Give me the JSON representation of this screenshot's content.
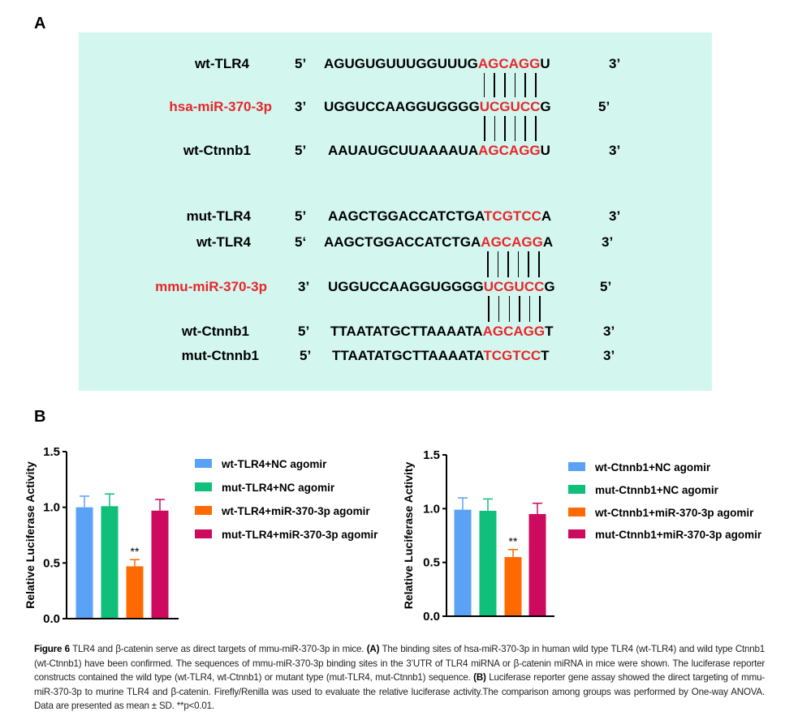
{
  "panel_a": {
    "label": "A",
    "rows": [
      {
        "name": "wt-TLR4",
        "p5": "5’",
        "pre": "AGUGUGUUUGGUUUG",
        "red": "AGCAGG",
        "post": "U",
        "p3": "3’",
        "mir": false
      },
      {
        "name": "hsa-miR-370-3p",
        "p5": "3’",
        "pre": "UGGUCCAAGGUGGGG",
        "red": "UCGUCC",
        "post": "G",
        "p3": "5’",
        "mir": true
      },
      {
        "name": "wt-Ctnnb1",
        "p5": "5’",
        "pre": "AAUAUGCUUAAAAUA",
        "red": "AGCAGG",
        "post": "U",
        "p3": "3’",
        "mir": false
      },
      {
        "name": "mut-TLR4",
        "p5": "5’",
        "pre": "AAGCTGGACCATCTGA",
        "red": "TCGTCC",
        "post": "A",
        "p3": "3’",
        "mir": false
      },
      {
        "name": "wt-TLR4",
        "p5": "5‘",
        "pre": "AAGCTGGACCATCTGA",
        "red": "AGCAGG",
        "post": "A",
        "p3": "3’",
        "mir": false
      },
      {
        "name": "mmu-miR-370-3p",
        "p5": "3’",
        "pre": "UGGUCCAAGGUGGGG",
        "red": "UCGUCC",
        "post": "G",
        "p3": "5’",
        "mir": true
      },
      {
        "name": "wt-Ctnnb1",
        "p5": "5’",
        "pre": "TTAATATGCTTAAAATA",
        "red": "AGCAGG",
        "post": "T",
        "p3": "3’",
        "mir": false
      },
      {
        "name": "mut-Ctnnb1",
        "p5": "5’",
        "pre": "TTAATATGCTTAAAATA",
        "red": "TCGTCC",
        "post": "T",
        "p3": "3’",
        "mir": false
      }
    ]
  },
  "panel_b": {
    "label": "B"
  },
  "colors": {
    "blue": "#5aa2f5",
    "green": "#0fbf7a",
    "orange": "#ff6a00",
    "magenta": "#cc0a5e",
    "highlight": "#e8262b",
    "panel_bg": "#d3f7ef"
  },
  "chart_data": [
    {
      "type": "bar",
      "ylabel": "Relative Luciferase Activity",
      "ylim": [
        0,
        1.5
      ],
      "yticks": [
        "0.0",
        "0.5",
        "1.0",
        "1.5"
      ],
      "legend_position": "right",
      "series": [
        {
          "name": "wt-TLR4+NC agomir",
          "value": 1.0,
          "error": 0.1,
          "color": "#5aa2f5",
          "annotation": ""
        },
        {
          "name": "mut-TLR4+NC agomir",
          "value": 1.01,
          "error": 0.11,
          "color": "#0fbf7a",
          "annotation": ""
        },
        {
          "name": "wt-TLR4+miR-370-3p agomir",
          "value": 0.47,
          "error": 0.06,
          "color": "#ff6a00",
          "annotation": "**"
        },
        {
          "name": "mut-TLR4+miR-370-3p agomir",
          "value": 0.97,
          "error": 0.1,
          "color": "#cc0a5e",
          "annotation": ""
        }
      ]
    },
    {
      "type": "bar",
      "ylabel": "Relative Luciferase Activity",
      "ylim": [
        0,
        1.5
      ],
      "yticks": [
        "0.0",
        "0.5",
        "1.0",
        "1.5"
      ],
      "legend_position": "right",
      "series": [
        {
          "name": "wt-Ctnnb1+NC agomir",
          "value": 0.99,
          "error": 0.11,
          "color": "#5aa2f5",
          "annotation": ""
        },
        {
          "name": "mut-Ctnnb1+NC agomir",
          "value": 0.98,
          "error": 0.11,
          "color": "#0fbf7a",
          "annotation": ""
        },
        {
          "name": "wt-Ctnnb1+miR-370-3p agomir",
          "value": 0.55,
          "error": 0.07,
          "color": "#ff6a00",
          "annotation": "**"
        },
        {
          "name": "mut-Ctnnb1+miR-370-3p agomir",
          "value": 0.95,
          "error": 0.1,
          "color": "#cc0a5e",
          "annotation": ""
        }
      ]
    }
  ],
  "caption": {
    "segments": [
      {
        "text": "Figure 6",
        "bold": true
      },
      {
        "text": " TLR4 and β-catenin serve as direct targets of mmu-miR-370-3p in mice. ",
        "bold": false
      },
      {
        "text": "(A)",
        "bold": true
      },
      {
        "text": " The binding sites of hsa-miR-370-3p in human wild type TLR4 (wt-TLR4) and wild type Ctnnb1 (wt-Ctnnb1) have been confirmed. The sequences of mmu-miR-370-3p binding sites in the 3’UTR of TLR4 miRNA or β-catenin miRNA in mice were shown. The luciferase reporter constructs contained the wild type (wt-TLR4, wt-Ctnnb1) or mutant type (mut-TLR4, mut-Ctnnb1) sequence. ",
        "bold": false
      },
      {
        "text": "(B)",
        "bold": true
      },
      {
        "text": " Luciferase reporter gene assay showed the direct targeting of mmu-miR-370-3p to murine TLR4 and β-catenin. Firefly/Renilla was used to evaluate the relative luciferase activity.The comparison among groups was performed by One-way ANOVA. Data are presented as mean ± SD. **p<0.01.",
        "bold": false
      }
    ]
  }
}
